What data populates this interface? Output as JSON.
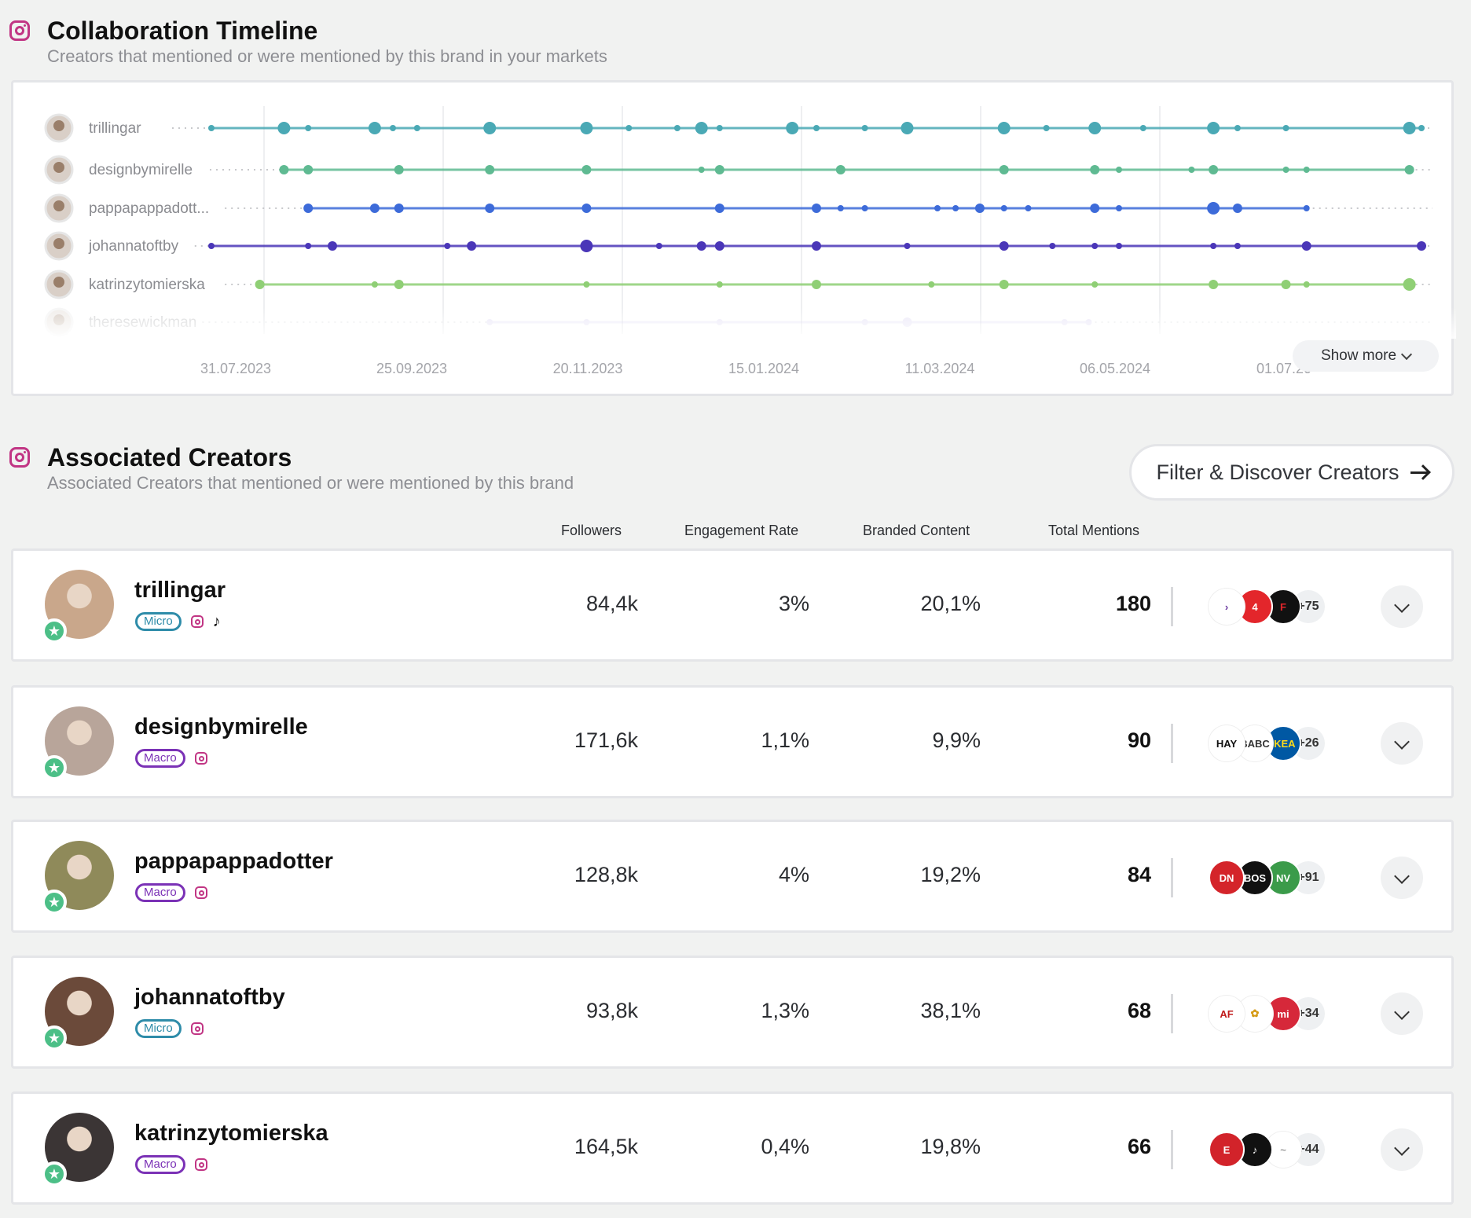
{
  "timeline": {
    "title": "Collaboration Timeline",
    "subtitle": "Creators that mentioned or were mentioned by this brand in your markets",
    "show_more_label": "Show more",
    "dates": [
      "31.07.2023",
      "25.09.2023",
      "20.11.2023",
      "15.01.2024",
      "11.03.2024",
      "06.05.2024",
      "01.07.20"
    ],
    "rows": [
      {
        "name": "trillingar",
        "color": "#4aa9b5",
        "start": 0.0,
        "events": [
          [
            0.0,
            1
          ],
          [
            0.06,
            3
          ],
          [
            0.08,
            1
          ],
          [
            0.135,
            3
          ],
          [
            0.15,
            1
          ],
          [
            0.17,
            1
          ],
          [
            0.23,
            3
          ],
          [
            0.31,
            3
          ],
          [
            0.345,
            1
          ],
          [
            0.385,
            1
          ],
          [
            0.405,
            3
          ],
          [
            0.42,
            1
          ],
          [
            0.48,
            3
          ],
          [
            0.5,
            1
          ],
          [
            0.54,
            1
          ],
          [
            0.575,
            3
          ],
          [
            0.655,
            3
          ],
          [
            0.69,
            1
          ],
          [
            0.73,
            3
          ],
          [
            0.77,
            1
          ],
          [
            0.828,
            3
          ],
          [
            0.848,
            1
          ],
          [
            0.888,
            1
          ],
          [
            0.99,
            3
          ],
          [
            1.0,
            1
          ]
        ]
      },
      {
        "name": "designbymirelle",
        "color": "#5fba92",
        "start": 0.06,
        "events": [
          [
            0.06,
            2
          ],
          [
            0.08,
            2
          ],
          [
            0.155,
            2
          ],
          [
            0.23,
            2
          ],
          [
            0.31,
            2
          ],
          [
            0.405,
            1
          ],
          [
            0.42,
            2
          ],
          [
            0.52,
            2
          ],
          [
            0.655,
            2
          ],
          [
            0.73,
            2
          ],
          [
            0.75,
            1
          ],
          [
            0.81,
            1
          ],
          [
            0.828,
            2
          ],
          [
            0.888,
            1
          ],
          [
            0.905,
            1
          ],
          [
            0.99,
            2
          ]
        ]
      },
      {
        "name": "pappapappadott...",
        "color": "#3d6bd9",
        "start": 0.08,
        "events": [
          [
            0.08,
            2
          ],
          [
            0.135,
            2
          ],
          [
            0.155,
            2
          ],
          [
            0.23,
            2
          ],
          [
            0.31,
            2
          ],
          [
            0.42,
            2
          ],
          [
            0.5,
            2
          ],
          [
            0.52,
            1
          ],
          [
            0.54,
            1
          ],
          [
            0.6,
            1
          ],
          [
            0.615,
            1
          ],
          [
            0.635,
            2
          ],
          [
            0.655,
            1
          ],
          [
            0.675,
            1
          ],
          [
            0.73,
            2
          ],
          [
            0.75,
            1
          ],
          [
            0.828,
            3
          ],
          [
            0.848,
            2
          ],
          [
            0.905,
            1
          ]
        ]
      },
      {
        "name": "johannatoftby",
        "color": "#4a36b8",
        "start": 0.0,
        "events": [
          [
            0.0,
            1
          ],
          [
            0.08,
            1
          ],
          [
            0.1,
            2
          ],
          [
            0.195,
            1
          ],
          [
            0.215,
            2
          ],
          [
            0.31,
            3
          ],
          [
            0.37,
            1
          ],
          [
            0.405,
            2
          ],
          [
            0.42,
            2
          ],
          [
            0.5,
            2
          ],
          [
            0.575,
            1
          ],
          [
            0.655,
            2
          ],
          [
            0.695,
            1
          ],
          [
            0.73,
            1
          ],
          [
            0.75,
            1
          ],
          [
            0.828,
            1
          ],
          [
            0.848,
            1
          ],
          [
            0.905,
            2
          ],
          [
            1.0,
            2
          ]
        ]
      },
      {
        "name": "katrinzytomierska",
        "color": "#8fcf75",
        "start": 0.04,
        "events": [
          [
            0.04,
            2
          ],
          [
            0.135,
            1
          ],
          [
            0.155,
            2
          ],
          [
            0.31,
            1
          ],
          [
            0.42,
            1
          ],
          [
            0.5,
            2
          ],
          [
            0.595,
            1
          ],
          [
            0.655,
            2
          ],
          [
            0.73,
            1
          ],
          [
            0.828,
            2
          ],
          [
            0.888,
            2
          ],
          [
            0.905,
            1
          ],
          [
            0.99,
            3
          ]
        ]
      },
      {
        "name": "theresewickman",
        "color": "#c9c2ec",
        "start": 0.23,
        "events": [
          [
            0.23,
            1
          ],
          [
            0.31,
            1
          ],
          [
            0.42,
            1
          ],
          [
            0.54,
            1
          ],
          [
            0.575,
            2
          ],
          [
            0.705,
            1
          ],
          [
            0.725,
            1
          ]
        ]
      }
    ]
  },
  "creators_section": {
    "title": "Associated Creators",
    "subtitle": "Associated Creators that mentioned or were mentioned by this brand",
    "filter_button_label": "Filter & Discover Creators",
    "columns": {
      "followers": "Followers",
      "engagement": "Engagement Rate",
      "branded": "Branded Content",
      "mentions": "Total Mentions"
    }
  },
  "creators": [
    {
      "name": "trillingar",
      "tier": "Micro",
      "tiktok": true,
      "followers": "84,4k",
      "engagement": "3%",
      "branded": "20,1%",
      "mentions": "180",
      "avatar_color": "#c9a78b",
      "logos": [
        {
          "text": "›",
          "bg": "#ffffff",
          "fg": "#6b3aa0"
        },
        {
          "text": "4",
          "bg": "#e3262b",
          "fg": "#ffffff"
        },
        {
          "text": "F",
          "bg": "#111111",
          "fg": "#e3262b"
        }
      ],
      "more": "+75"
    },
    {
      "name": "designbymirelle",
      "tier": "Macro",
      "tiktok": false,
      "followers": "171,6k",
      "engagement": "1,1%",
      "branded": "9,9%",
      "mentions": "90",
      "avatar_color": "#b8a59a",
      "logos": [
        {
          "text": "HAY",
          "bg": "#ffffff",
          "fg": "#111111"
        },
        {
          "text": "BABC",
          "bg": "#ffffff",
          "fg": "#333333"
        },
        {
          "text": "IKEA",
          "bg": "#0058a3",
          "fg": "#ffda1a"
        }
      ],
      "more": "+26"
    },
    {
      "name": "pappapappadotter",
      "tier": "Macro",
      "tiktok": false,
      "followers": "128,8k",
      "engagement": "4%",
      "branded": "19,2%",
      "mentions": "84",
      "avatar_color": "#8f8a5a",
      "logos": [
        {
          "text": "DN",
          "bg": "#d4242a",
          "fg": "#ffffff"
        },
        {
          "text": "BOS",
          "bg": "#111111",
          "fg": "#ffffff"
        },
        {
          "text": "NV",
          "bg": "#3b9b4a",
          "fg": "#ffffff"
        }
      ],
      "more": "+91"
    },
    {
      "name": "johannatoftby",
      "tier": "Micro",
      "tiktok": false,
      "followers": "93,8k",
      "engagement": "1,3%",
      "branded": "38,1%",
      "mentions": "68",
      "avatar_color": "#6b4a3a",
      "logos": [
        {
          "text": "AF",
          "bg": "#ffffff",
          "fg": "#c01b1b"
        },
        {
          "text": "✿",
          "bg": "#ffffff",
          "fg": "#d59a14"
        },
        {
          "text": "mi",
          "bg": "#d6283a",
          "fg": "#ffffff"
        }
      ],
      "more": "+34"
    },
    {
      "name": "katrinzytomierska",
      "tier": "Macro",
      "tiktok": false,
      "followers": "164,5k",
      "engagement": "0,4%",
      "branded": "19,8%",
      "mentions": "66",
      "avatar_color": "#3b3535",
      "logos": [
        {
          "text": "E",
          "bg": "#d2232a",
          "fg": "#ffffff"
        },
        {
          "text": "♪",
          "bg": "#111111",
          "fg": "#ffffff"
        },
        {
          "text": "~",
          "bg": "#ffffff",
          "fg": "#999999"
        }
      ],
      "more": "+44"
    }
  ]
}
